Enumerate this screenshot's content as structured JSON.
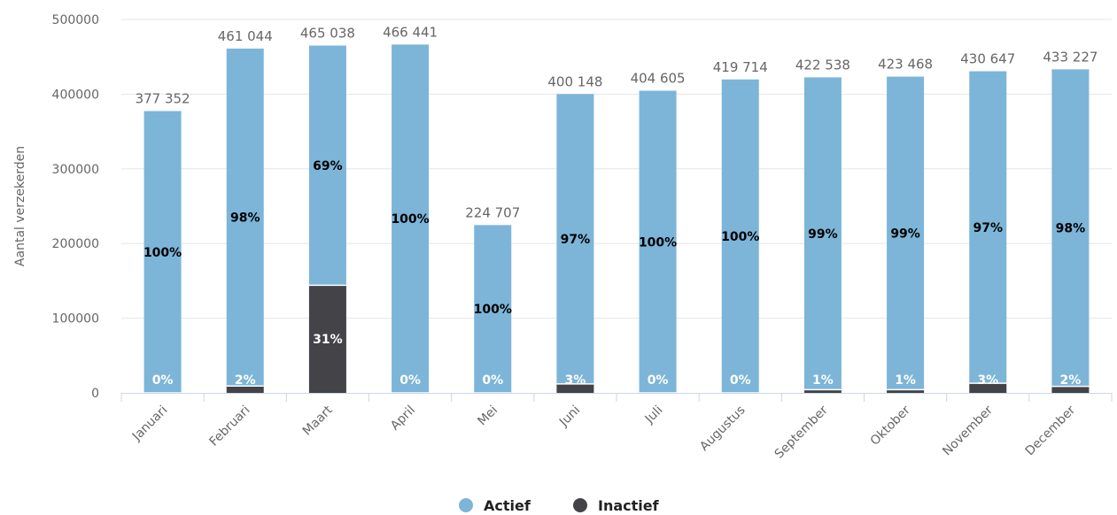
{
  "chart_data": {
    "type": "bar",
    "stacked": true,
    "ylabel": "Aantal verzekerden",
    "ylim": [
      0,
      500000
    ],
    "yticks": [
      "0",
      "100000",
      "200000",
      "300000",
      "400000",
      "500000"
    ],
    "categories": [
      "Januari",
      "Februari",
      "Maart",
      "April",
      "Mei",
      "Juni",
      "Juli",
      "Augustus",
      "September",
      "Oktober",
      "November",
      "December"
    ],
    "totals": [
      377352,
      461044,
      465038,
      466441,
      224707,
      400148,
      404605,
      419714,
      422538,
      423468,
      430647,
      433227
    ],
    "total_labels": [
      "377 352",
      "461 044",
      "465 038",
      "466 441",
      "224 707",
      "400 148",
      "404 605",
      "419 714",
      "422 538",
      "423 468",
      "430 647",
      "433 227"
    ],
    "series": [
      {
        "name": "Actief",
        "color": "#7cb5d8",
        "values": [
          377352,
          451823,
          320876,
          466441,
          224707,
          388144,
          404605,
          419714,
          418313,
          419233,
          417728,
          424562
        ],
        "percent_labels": [
          "100%",
          "98%",
          "69%",
          "100%",
          "100%",
          "97%",
          "100%",
          "100%",
          "99%",
          "99%",
          "97%",
          "98%"
        ]
      },
      {
        "name": "Inactief",
        "color": "#434348",
        "values": [
          0,
          9221,
          144162,
          0,
          0,
          12004,
          0,
          0,
          4225,
          4235,
          12919,
          8665
        ],
        "percent_labels": [
          "0%",
          "2%",
          "31%",
          "0%",
          "0%",
          "3%",
          "0%",
          "0%",
          "1%",
          "1%",
          "3%",
          "2%"
        ]
      }
    ],
    "legend_position": "bottom-center",
    "grid": true
  }
}
